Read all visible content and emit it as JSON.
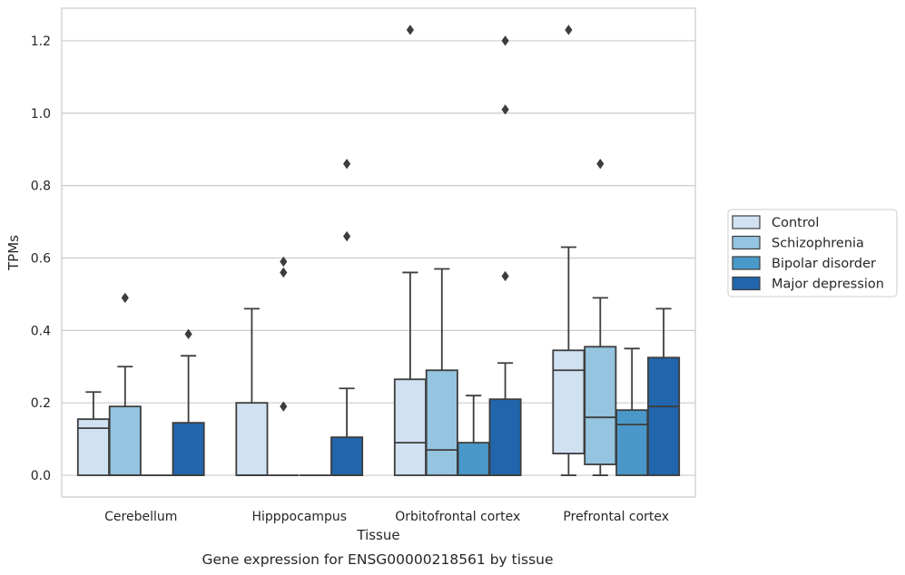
{
  "chart_data": {
    "type": "box",
    "title": "",
    "caption": "Gene expression for ENSG00000218561 by tissue",
    "xlabel": "Tissue",
    "ylabel": "TPMs",
    "ylim": [
      -0.06,
      1.29
    ],
    "yticks": [
      0.0,
      0.2,
      0.4,
      0.6,
      0.8,
      1.0,
      1.2
    ],
    "ytick_labels": [
      "0.0",
      "0.2",
      "0.4",
      "0.6",
      "0.8",
      "1.0",
      "1.2"
    ],
    "grid": "horizontal",
    "legend_position": "right",
    "categories": [
      "Cerebellum",
      "Hipppocampus",
      "Orbitofrontal cortex",
      "Prefrontal cortex"
    ],
    "series": [
      {
        "name": "Control",
        "color": "#d0e1f2",
        "boxes": [
          {
            "q1": 0.0,
            "median": 0.13,
            "q3": 0.155,
            "whisker_low": 0.0,
            "whisker_high": 0.23,
            "outliers": []
          },
          {
            "q1": 0.0,
            "median": 0.0,
            "q3": 0.2,
            "whisker_low": 0.0,
            "whisker_high": 0.46,
            "outliers": []
          },
          {
            "q1": 0.0,
            "median": 0.09,
            "q3": 0.265,
            "whisker_low": 0.0,
            "whisker_high": 0.56,
            "outliers": [
              1.23
            ]
          },
          {
            "q1": 0.06,
            "median": 0.29,
            "q3": 0.345,
            "whisker_low": 0.0,
            "whisker_high": 0.63,
            "outliers": [
              1.23
            ]
          }
        ]
      },
      {
        "name": "Schizophrenia",
        "color": "#94c4df",
        "boxes": [
          {
            "q1": 0.0,
            "median": 0.0,
            "q3": 0.19,
            "whisker_low": 0.0,
            "whisker_high": 0.3,
            "outliers": [
              0.49
            ]
          },
          {
            "q1": 0.0,
            "median": 0.0,
            "q3": 0.0,
            "whisker_low": 0.0,
            "whisker_high": 0.0,
            "outliers": [
              0.19,
              0.56,
              0.59
            ]
          },
          {
            "q1": 0.0,
            "median": 0.07,
            "q3": 0.29,
            "whisker_low": 0.0,
            "whisker_high": 0.57,
            "outliers": []
          },
          {
            "q1": 0.03,
            "median": 0.16,
            "q3": 0.355,
            "whisker_low": 0.0,
            "whisker_high": 0.49,
            "outliers": [
              0.86
            ]
          }
        ]
      },
      {
        "name": "Bipolar disorder",
        "color": "#4a98c9",
        "boxes": [
          {
            "q1": 0.0,
            "median": 0.0,
            "q3": 0.0,
            "whisker_low": 0.0,
            "whisker_high": 0.0,
            "outliers": []
          },
          {
            "q1": 0.0,
            "median": 0.0,
            "q3": 0.0,
            "whisker_low": 0.0,
            "whisker_high": 0.0,
            "outliers": []
          },
          {
            "q1": 0.0,
            "median": 0.0,
            "q3": 0.09,
            "whisker_low": 0.0,
            "whisker_high": 0.22,
            "outliers": []
          },
          {
            "q1": 0.0,
            "median": 0.14,
            "q3": 0.18,
            "whisker_low": 0.0,
            "whisker_high": 0.35,
            "outliers": []
          }
        ]
      },
      {
        "name": "Major depression",
        "color": "#2166ac",
        "boxes": [
          {
            "q1": 0.0,
            "median": 0.0,
            "q3": 0.145,
            "whisker_low": 0.0,
            "whisker_high": 0.33,
            "outliers": [
              0.39
            ]
          },
          {
            "q1": 0.0,
            "median": 0.0,
            "q3": 0.105,
            "whisker_low": 0.0,
            "whisker_high": 0.24,
            "outliers": [
              0.66,
              0.86
            ]
          },
          {
            "q1": 0.0,
            "median": 0.0,
            "q3": 0.21,
            "whisker_low": 0.0,
            "whisker_high": 0.31,
            "outliers": [
              0.55,
              1.01,
              1.2
            ]
          },
          {
            "q1": 0.0,
            "median": 0.19,
            "q3": 0.325,
            "whisker_low": 0.0,
            "whisker_high": 0.46,
            "outliers": []
          }
        ]
      }
    ]
  }
}
